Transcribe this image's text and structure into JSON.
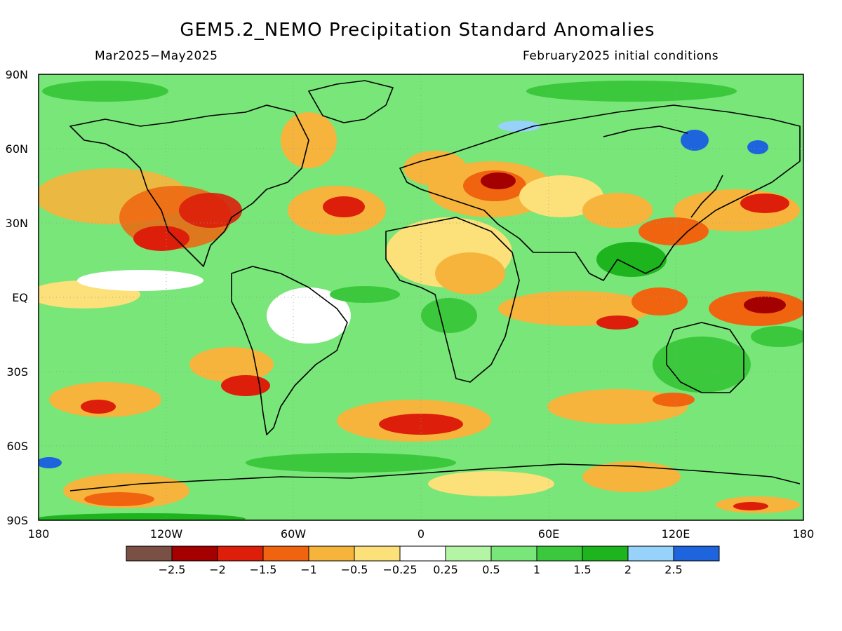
{
  "header": {
    "title": "GEM5.2_NEMO Precipitation Standard Anomalies",
    "period": "Mar2025−May2025",
    "initial_conditions": "February2025 initial conditions"
  },
  "map": {
    "projection": "equirectangular",
    "lon_range": [
      -180,
      180
    ],
    "lat_range": [
      -90,
      90
    ],
    "lat_ticks": [
      "90N",
      "60N",
      "30N",
      "EQ",
      "30S",
      "60S",
      "90S"
    ],
    "lon_ticks": [
      "180",
      "120W",
      "60W",
      "0",
      "60E",
      "120E",
      "180"
    ]
  },
  "colorbar": {
    "labels": [
      "−2.5",
      "−2",
      "−1.5",
      "−1",
      "−0.5",
      "−0.25",
      "0.25",
      "0.5",
      "1",
      "1.5",
      "2",
      "2.5"
    ],
    "colors": [
      "#7a5045",
      "#a50000",
      "#dc1e0a",
      "#f0640f",
      "#f7b43c",
      "#fce07a",
      "#ffffff",
      "#b4f5a5",
      "#78e678",
      "#3cc83c",
      "#1eb41e",
      "#96d2fa",
      "#1e64dc"
    ]
  }
}
